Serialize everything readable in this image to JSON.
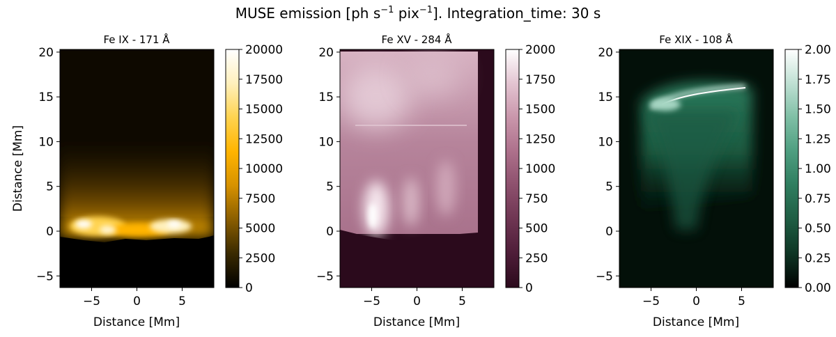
{
  "suptitle": {
    "prefix": "MUSE emission [ph s",
    "sup1": "−1",
    "mid": " pix",
    "sup2": "−1",
    "suffix": "]. Integration_time: 30 s"
  },
  "chart_data": [
    {
      "type": "heatmap",
      "title": "Fe IX - 171 Å",
      "xlabel": "Distance [Mm]",
      "ylabel": "Distance [Mm]",
      "xlim": [
        -8.5,
        8.5
      ],
      "ylim": [
        -6.3,
        20.3
      ],
      "xticks": [
        -5,
        0,
        5
      ],
      "xtick_labels": [
        "−5",
        "0",
        "5"
      ],
      "yticks": [
        -5,
        0,
        5,
        10,
        15,
        20
      ],
      "ytick_labels": [
        "−5",
        "0",
        "5",
        "10",
        "15",
        "20"
      ],
      "colorbar": {
        "range": [
          0,
          20000
        ],
        "ticks": [
          0,
          2500,
          5000,
          7500,
          10000,
          12500,
          15000,
          17500,
          20000
        ],
        "tick_labels": [
          "0",
          "2500",
          "5000",
          "7500",
          "10000",
          "12500",
          "15000",
          "17500",
          "20000"
        ],
        "colors": [
          "#000000",
          "#3a2a00",
          "#8a5e00",
          "#d79200",
          "#ffb400",
          "#ffd34f",
          "#fff0bc",
          "#ffffff"
        ]
      },
      "emission_features": {
        "brightest_band_y": [
          -1,
          1
        ],
        "peak_locations_x": [
          -6,
          -3,
          3,
          5.5
        ],
        "description_region_y": [
          -1,
          5
        ]
      }
    },
    {
      "type": "heatmap",
      "title": "Fe XV - 284 Å",
      "xlabel": "Distance [Mm]",
      "ylabel": "",
      "xlim": [
        -8.5,
        8.5
      ],
      "ylim": [
        -6.3,
        20.3
      ],
      "xticks": [
        -5,
        0,
        5
      ],
      "xtick_labels": [
        "−5",
        "0",
        "5"
      ],
      "yticks": [
        -5,
        0,
        5,
        10,
        15,
        20
      ],
      "ytick_labels": [
        "−5",
        "0",
        "5",
        "10",
        "15",
        "20"
      ],
      "colorbar": {
        "range": [
          0,
          2000
        ],
        "ticks": [
          0,
          250,
          500,
          750,
          1000,
          1250,
          1500,
          1750,
          2000
        ],
        "tick_labels": [
          "0",
          "250",
          "500",
          "750",
          "1000",
          "1250",
          "1500",
          "1750",
          "2000"
        ],
        "colors": [
          "#2b0a1c",
          "#4e1d38",
          "#6e3552",
          "#8d506d",
          "#ad708b",
          "#c996ab",
          "#e3c4d1",
          "#ffffff"
        ]
      },
      "emission_features": {
        "bright_region_x": [
          -7,
          7
        ],
        "bright_region_y": [
          -1,
          20
        ],
        "brightest_spot": [
          -5,
          1
        ]
      }
    },
    {
      "type": "heatmap",
      "title": "Fe XIX - 108 Å",
      "xlabel": "Distance [Mm]",
      "ylabel": "",
      "xlim": [
        -8.5,
        8.5
      ],
      "ylim": [
        -6.3,
        20.3
      ],
      "xticks": [
        -5,
        0,
        5
      ],
      "xtick_labels": [
        "−5",
        "0",
        "5"
      ],
      "yticks": [
        -5,
        0,
        5,
        10,
        15,
        20
      ],
      "ytick_labels": [
        "−5",
        "0",
        "5",
        "10",
        "15",
        "20"
      ],
      "colorbar": {
        "range": [
          0,
          2.0
        ],
        "ticks": [
          0,
          0.25,
          0.5,
          0.75,
          1.0,
          1.25,
          1.5,
          1.75,
          2.0
        ],
        "tick_labels": [
          "0.00",
          "0.25",
          "0.50",
          "0.75",
          "1.00",
          "1.25",
          "1.50",
          "1.75",
          "2.00"
        ],
        "colors": [
          "#000000",
          "#0e3524",
          "#1f5d43",
          "#2f7d5f",
          "#4e9e80",
          "#7fbfa5",
          "#bfe0d3",
          "#ffffff"
        ]
      },
      "emission_features": {
        "loop_top_y": [
          14,
          16
        ],
        "loop_top_x": [
          -3,
          4
        ],
        "diffuse_region_y": [
          0,
          16
        ]
      }
    }
  ]
}
